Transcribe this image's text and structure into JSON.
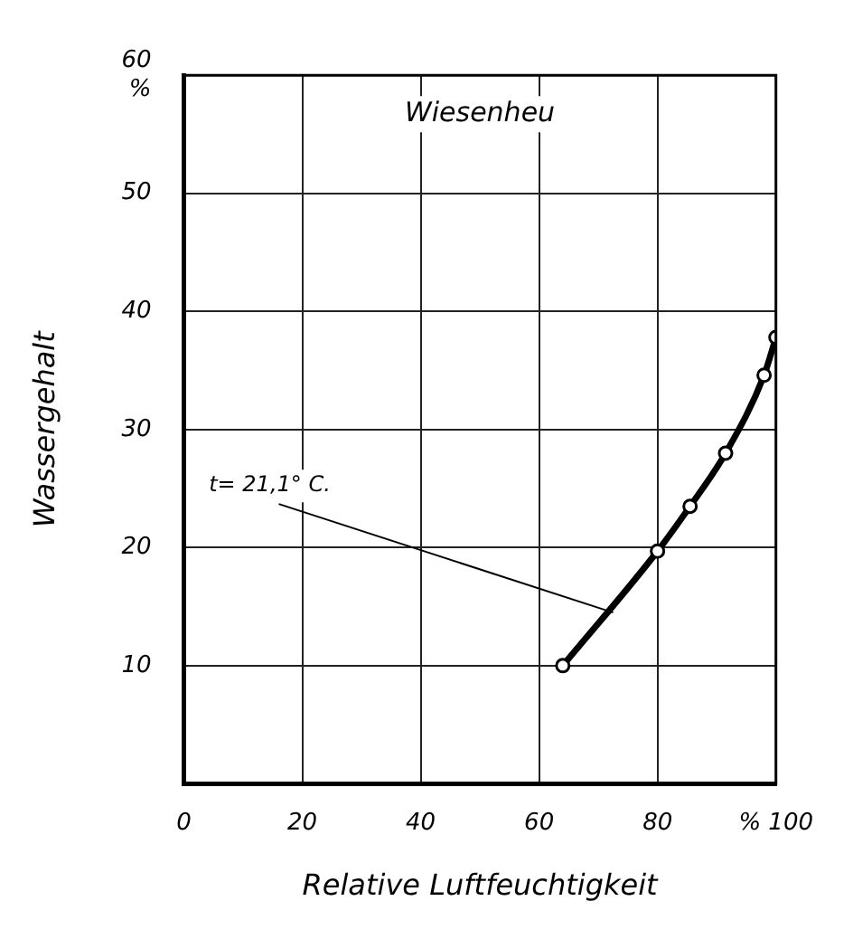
{
  "chart_data": {
    "type": "line",
    "title": "Wiesenheu",
    "xlabel": "Relative Luftfeuchtigkeit",
    "ylabel": "Wassergehalt",
    "x": [
      64,
      80,
      85.5,
      91.5,
      98,
      100
    ],
    "series": [
      {
        "color": "#000000",
        "values": [
          10,
          19.7,
          23.5,
          28,
          34.6,
          37.8
        ]
      }
    ],
    "xlim": [
      0,
      100
    ],
    "xticks": [
      0,
      20,
      40,
      60,
      80,
      {
        "value": 100,
        "label": "% 100"
      }
    ],
    "ylim": [
      0,
      60
    ],
    "yticks": [
      10,
      20,
      30,
      40,
      50,
      {
        "value": 60,
        "label": "60\n%"
      }
    ],
    "annotations": [
      {
        "text": "t= 21,1° C.",
        "x": 72.5,
        "y": 14.5
      }
    ],
    "grid": true,
    "legend": false,
    "marker": "circle",
    "line_style": "solid"
  }
}
